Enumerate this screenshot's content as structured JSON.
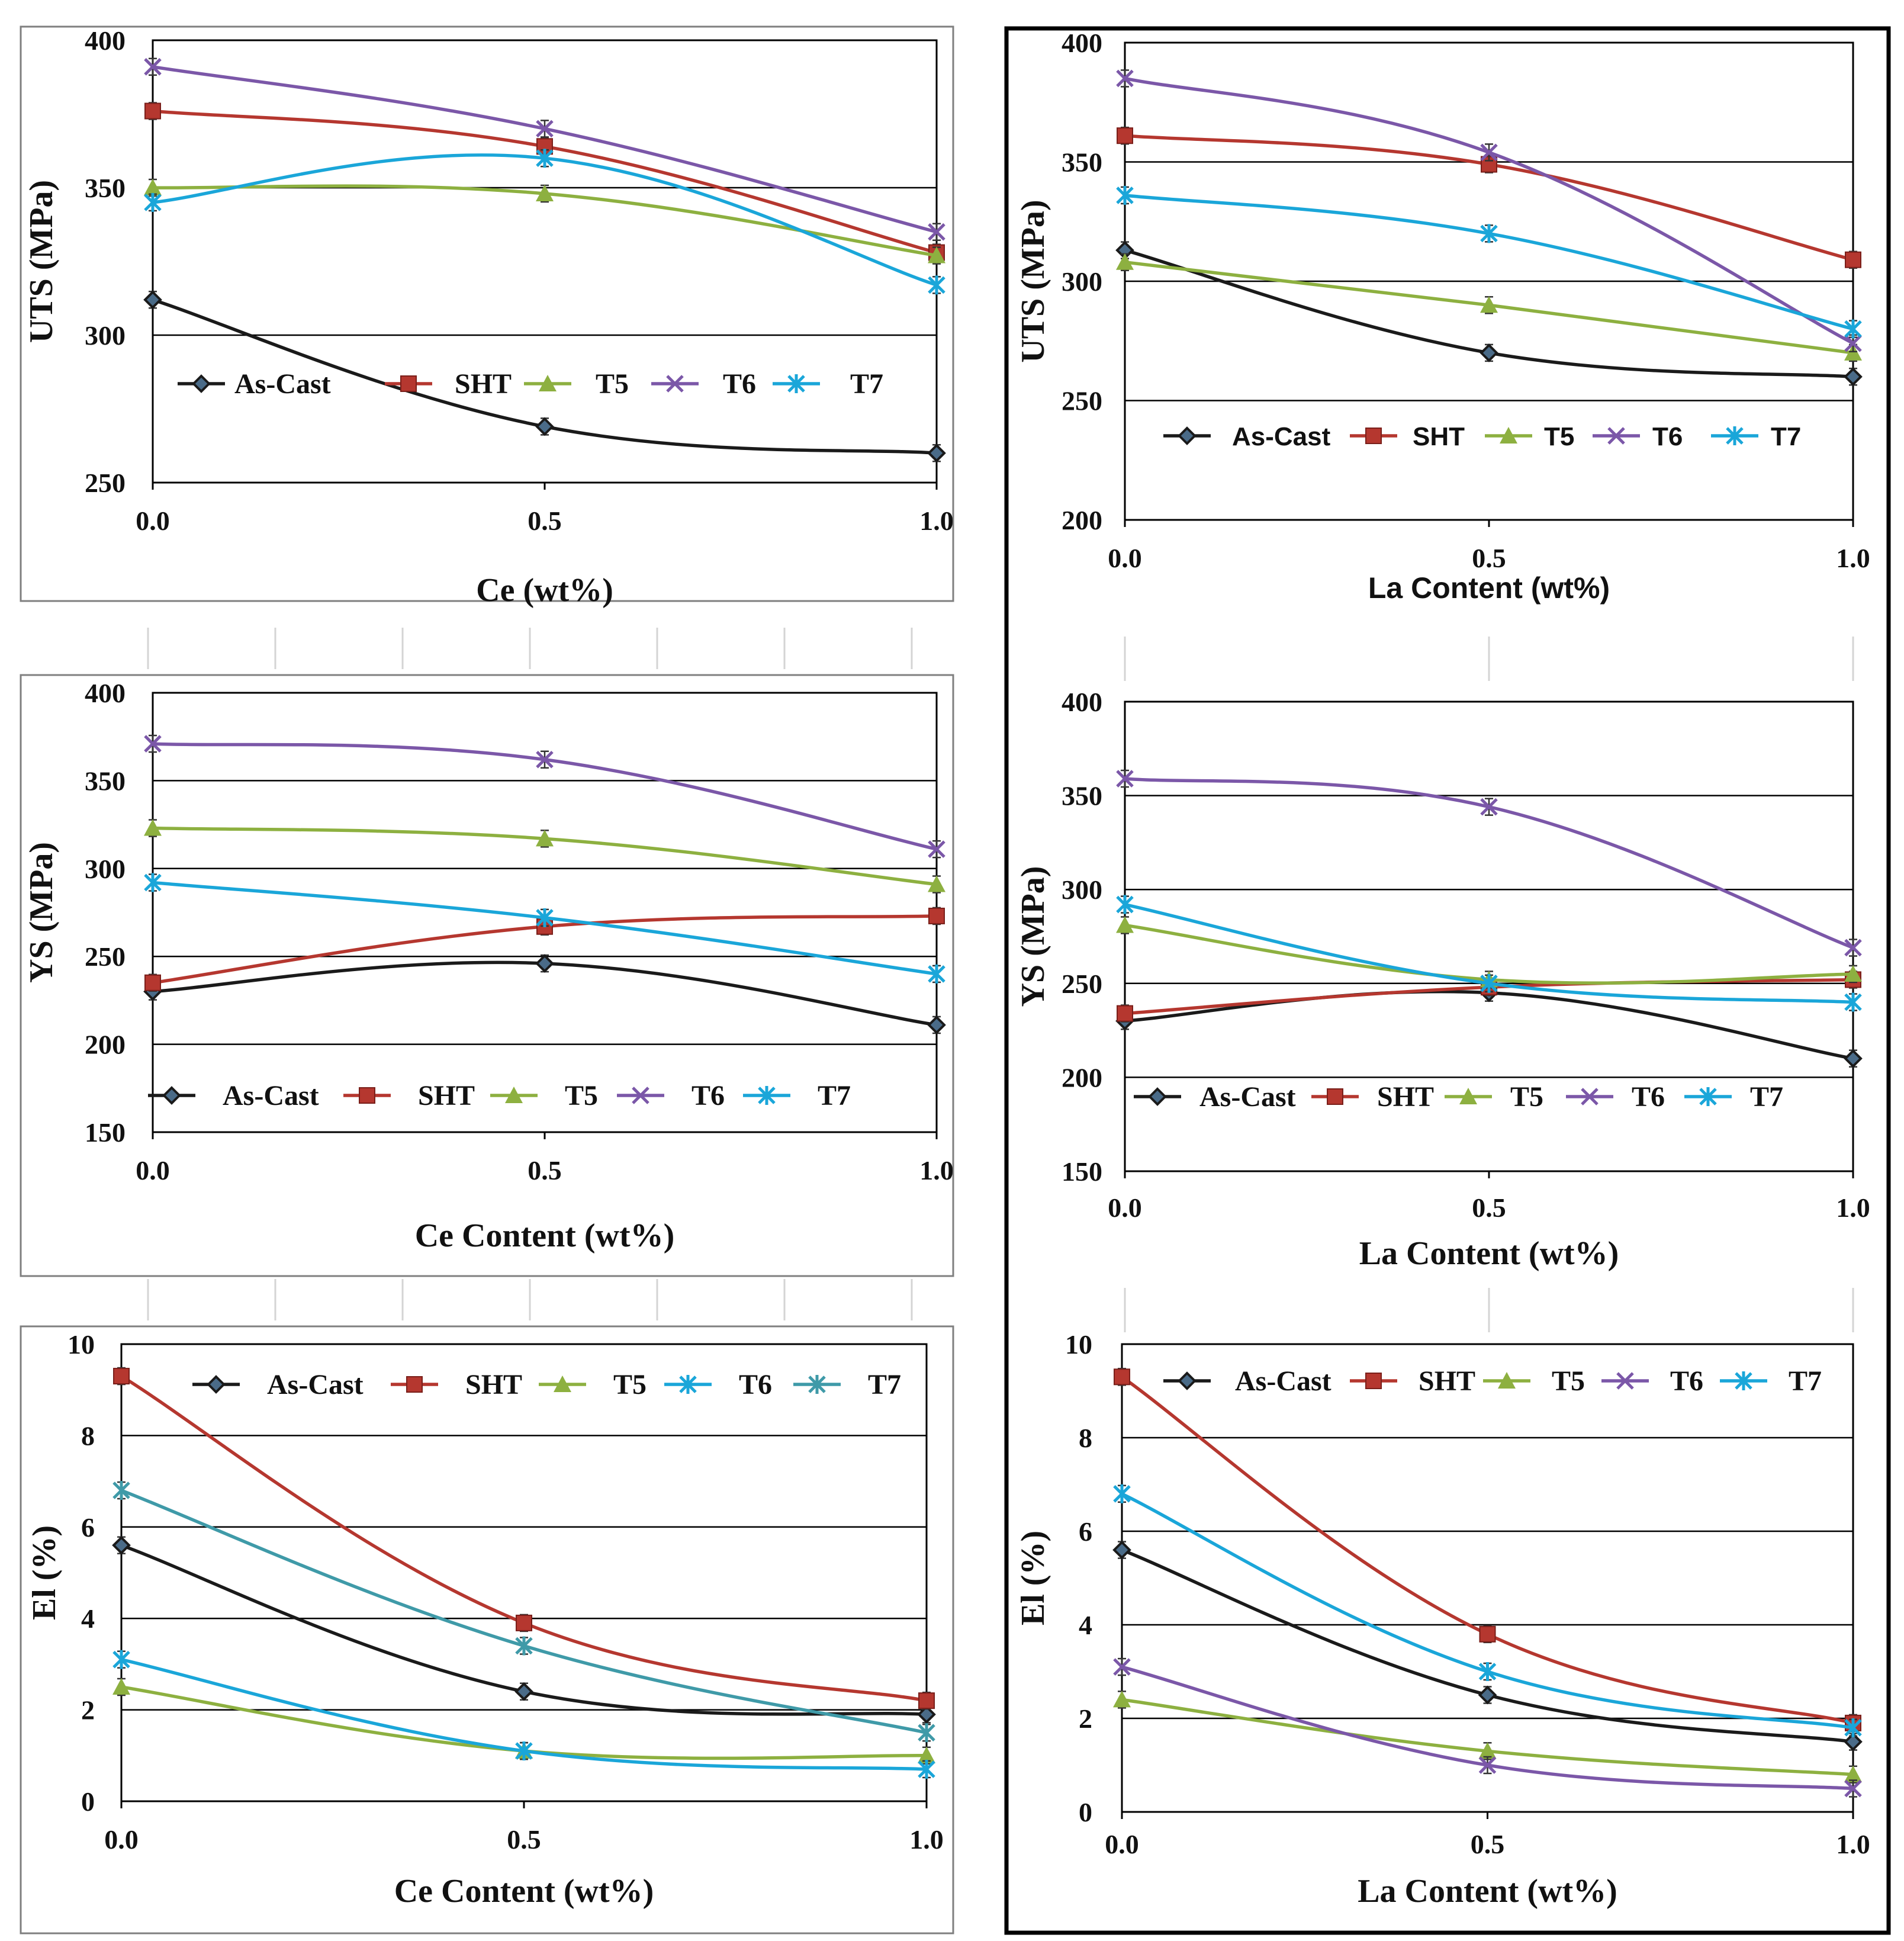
{
  "colors": {
    "As-Cast": "#1a1a1a",
    "SHT": "#b5372f",
    "T5": "#8db040",
    "T6": "#7b57a8",
    "T7": "#1aa6d9",
    "T7_teal": "#3f9aa8"
  },
  "chart_data": [
    {
      "id": "uts-ce",
      "type": "line",
      "ylabel": "UTS (MPa)",
      "xlabel": "Ce (wt%)",
      "x": [
        0.0,
        0.5,
        1.0
      ],
      "x_tick_labels": [
        "0.0",
        "0.5",
        "1.0"
      ],
      "ylim": [
        250,
        400
      ],
      "y_ticks": [
        "250",
        "300",
        "350",
        "400"
      ],
      "legend_position": "middle",
      "series": [
        {
          "name": "As-Cast",
          "marker": "diamond",
          "color_key": "As-Cast",
          "values": [
            312,
            269,
            260
          ]
        },
        {
          "name": "SHT",
          "marker": "square",
          "color_key": "SHT",
          "values": [
            376,
            364,
            328
          ]
        },
        {
          "name": "T5",
          "marker": "triangle",
          "color_key": "T5",
          "values": [
            350,
            348,
            327
          ]
        },
        {
          "name": "T6",
          "marker": "x",
          "color_key": "T6",
          "values": [
            391,
            370,
            335
          ]
        },
        {
          "name": "T7",
          "marker": "star",
          "color_key": "T7",
          "values": [
            345,
            360,
            317
          ]
        }
      ]
    },
    {
      "id": "uts-la",
      "type": "line",
      "ylabel": "UTS (MPa)",
      "xlabel": "La Content (wt%)",
      "x": [
        0.0,
        0.5,
        1.0
      ],
      "x_tick_labels": [
        "0.0",
        "0.5",
        "1.0"
      ],
      "ylim": [
        200,
        400
      ],
      "y_ticks": [
        "200",
        "250",
        "300",
        "350",
        "400"
      ],
      "legend_position": "bottom",
      "series": [
        {
          "name": "As-Cast",
          "marker": "diamond",
          "color_key": "As-Cast",
          "values": [
            313,
            270,
            260
          ]
        },
        {
          "name": "SHT",
          "marker": "square",
          "color_key": "SHT",
          "values": [
            361,
            349,
            309
          ]
        },
        {
          "name": "T5",
          "marker": "triangle",
          "color_key": "T5",
          "values": [
            308,
            290,
            270
          ]
        },
        {
          "name": "T6",
          "marker": "x",
          "color_key": "T6",
          "values": [
            385,
            354,
            274
          ]
        },
        {
          "name": "T7",
          "marker": "star",
          "color_key": "T7",
          "values": [
            336,
            320,
            280
          ]
        }
      ]
    },
    {
      "id": "ys-ce",
      "type": "line",
      "ylabel": "YS (MPa)",
      "xlabel": "Ce Content (wt%)",
      "x": [
        0.0,
        0.5,
        1.0
      ],
      "x_tick_labels": [
        "0.0",
        "0.5",
        "1.0"
      ],
      "ylim": [
        150,
        400
      ],
      "y_ticks": [
        "150",
        "200",
        "250",
        "300",
        "350",
        "400"
      ],
      "legend_position": "bottom",
      "series": [
        {
          "name": "As-Cast",
          "marker": "diamond",
          "color_key": "As-Cast",
          "values": [
            230,
            246,
            211
          ]
        },
        {
          "name": "SHT",
          "marker": "square",
          "color_key": "SHT",
          "values": [
            235,
            267,
            273
          ]
        },
        {
          "name": "T5",
          "marker": "triangle",
          "color_key": "T5",
          "values": [
            323,
            317,
            291
          ]
        },
        {
          "name": "T6",
          "marker": "x",
          "color_key": "T6",
          "values": [
            371,
            362,
            311
          ]
        },
        {
          "name": "T7",
          "marker": "star",
          "color_key": "T7",
          "values": [
            292,
            272,
            240
          ]
        }
      ]
    },
    {
      "id": "ys-la",
      "type": "line",
      "ylabel": "YS (MPa)",
      "xlabel": "La Content (wt%)",
      "x": [
        0.0,
        0.5,
        1.0
      ],
      "x_tick_labels": [
        "0.0",
        "0.5",
        "1.0"
      ],
      "ylim": [
        150,
        400
      ],
      "y_ticks": [
        "150",
        "200",
        "250",
        "300",
        "350",
        "400"
      ],
      "legend_position": "bottom",
      "series": [
        {
          "name": "As-Cast",
          "marker": "diamond",
          "color_key": "As-Cast",
          "values": [
            230,
            245,
            210
          ]
        },
        {
          "name": "SHT",
          "marker": "square",
          "color_key": "SHT",
          "values": [
            234,
            248,
            252
          ]
        },
        {
          "name": "T5",
          "marker": "triangle",
          "color_key": "T5",
          "values": [
            281,
            252,
            255
          ]
        },
        {
          "name": "T6",
          "marker": "x",
          "color_key": "T6",
          "values": [
            359,
            344,
            269
          ]
        },
        {
          "name": "T7",
          "marker": "star",
          "color_key": "T7",
          "values": [
            292,
            250,
            240
          ]
        }
      ]
    },
    {
      "id": "el-ce",
      "type": "line",
      "ylabel": "El (%)",
      "xlabel": "Ce Content (wt%)",
      "x": [
        0.0,
        0.5,
        1.0
      ],
      "x_tick_labels": [
        "0.0",
        "0.5",
        "1.0"
      ],
      "ylim": [
        0,
        10
      ],
      "y_ticks": [
        "0",
        "2",
        "4",
        "6",
        "8",
        "10"
      ],
      "legend_position": "top",
      "series": [
        {
          "name": "As-Cast",
          "marker": "diamond",
          "color_key": "As-Cast",
          "values": [
            5.6,
            2.4,
            1.9
          ]
        },
        {
          "name": "SHT",
          "marker": "square",
          "color_key": "SHT",
          "values": [
            9.3,
            3.9,
            2.2
          ]
        },
        {
          "name": "T5",
          "marker": "triangle",
          "color_key": "T5",
          "values": [
            2.5,
            1.1,
            1.0
          ]
        },
        {
          "name": "T6",
          "marker": "star",
          "color_key": "T7",
          "values": [
            3.1,
            1.1,
            0.7
          ]
        },
        {
          "name": "T7",
          "marker": "star",
          "color_key": "T7_teal",
          "values": [
            6.8,
            3.4,
            1.5
          ]
        }
      ]
    },
    {
      "id": "el-la",
      "type": "line",
      "ylabel": "El (%)",
      "xlabel": "La Content (wt%)",
      "x": [
        0.0,
        0.5,
        1.0
      ],
      "x_tick_labels": [
        "0.0",
        "0.5",
        "1.0"
      ],
      "ylim": [
        0,
        10
      ],
      "y_ticks": [
        "0",
        "2",
        "4",
        "6",
        "8",
        "10"
      ],
      "legend_position": "top",
      "series": [
        {
          "name": "As-Cast",
          "marker": "diamond",
          "color_key": "As-Cast",
          "values": [
            5.6,
            2.5,
            1.5
          ]
        },
        {
          "name": "SHT",
          "marker": "square",
          "color_key": "SHT",
          "values": [
            9.3,
            3.8,
            1.9
          ]
        },
        {
          "name": "T5",
          "marker": "triangle",
          "color_key": "T5",
          "values": [
            2.4,
            1.3,
            0.8
          ]
        },
        {
          "name": "T6",
          "marker": "x",
          "color_key": "T6",
          "values": [
            3.1,
            1.0,
            0.5
          ]
        },
        {
          "name": "T7",
          "marker": "star",
          "color_key": "T7",
          "values": [
            6.8,
            3.0,
            1.8
          ]
        }
      ]
    }
  ]
}
